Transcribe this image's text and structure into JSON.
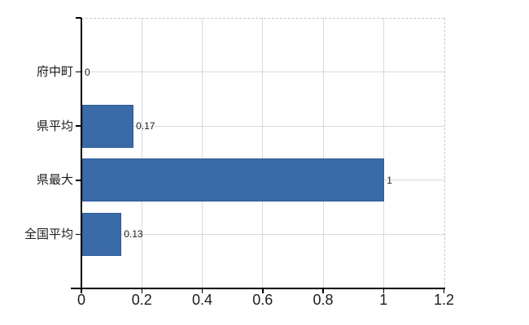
{
  "chart_data": {
    "type": "bar",
    "orientation": "horizontal",
    "title": "",
    "xlabel": "",
    "ylabel": "",
    "categories": [
      "府中町",
      "県平均",
      "県最大",
      "全国平均"
    ],
    "values": [
      0,
      0.17,
      1,
      0.13
    ],
    "value_labels": [
      "0",
      "0.17",
      "1",
      "0.13"
    ],
    "xlim": [
      0,
      1.2
    ],
    "x_ticks": [
      0,
      0.2,
      0.4,
      0.6,
      0.8,
      1,
      1.2
    ],
    "x_tick_labels": [
      "0",
      "0.2",
      "0.4",
      "0.6",
      "0.8",
      "1",
      "1.2"
    ],
    "grid": true,
    "legend": false,
    "colors": {
      "bar": "#3a6ba8",
      "bar_border": "#2d5c97",
      "gridline": "#d9d9d9",
      "dashed_border": "#c8c8c8",
      "axis": "#000000",
      "text": "#1c1c1c",
      "background": "#ffffff"
    }
  }
}
